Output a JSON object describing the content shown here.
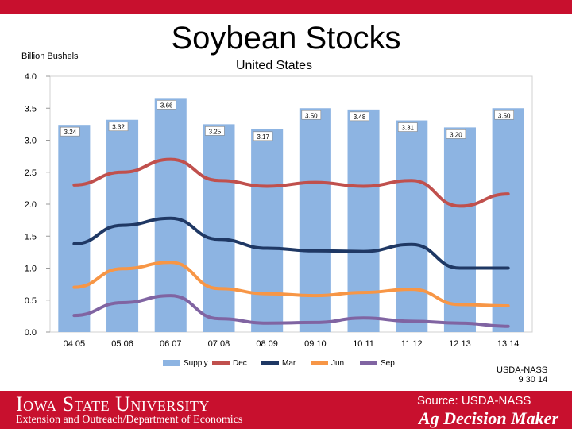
{
  "slide": {
    "title": "Soybean Stocks",
    "usda_note_line1": "USDA-NASS",
    "usda_note_line2": "9 30 14",
    "source": "Source: USDA-NASS",
    "university": "Iowa State University",
    "extension": "Extension and Outreach/Department of Economics",
    "brand": "Ag Decision Maker"
  },
  "colors": {
    "accent": "#c8102e",
    "supply": "#8db4e2",
    "dec": "#c0504d",
    "mar": "#1f3864",
    "jun": "#f79646",
    "sep": "#8064a2"
  },
  "chart_data": {
    "type": "bar",
    "title": "United States",
    "ylabel": "Billion Bushels",
    "xlabel": "",
    "ylim": [
      0,
      4.0
    ],
    "yticks": [
      "0.0",
      "0.5",
      "1.0",
      "1.5",
      "2.0",
      "2.5",
      "3.0",
      "3.5",
      "4.0"
    ],
    "categories": [
      "04 05",
      "05 06",
      "06 07",
      "07 08",
      "08 09",
      "09 10",
      "10 11",
      "11 12",
      "12 13",
      "13 14"
    ],
    "bar_series": {
      "name": "Supply",
      "values": [
        3.24,
        3.32,
        3.66,
        3.25,
        3.17,
        3.5,
        3.48,
        3.31,
        3.2,
        3.5
      ],
      "labels": [
        "3.24",
        "3.32",
        "3.66",
        "3.25",
        "3.17",
        "3.50",
        "3.48",
        "3.31",
        "3.20",
        "3.50"
      ]
    },
    "line_series": [
      {
        "name": "Dec",
        "values": [
          2.3,
          2.5,
          2.7,
          2.37,
          2.28,
          2.34,
          2.28,
          2.37,
          1.97,
          2.16
        ]
      },
      {
        "name": "Mar",
        "values": [
          1.38,
          1.67,
          1.78,
          1.45,
          1.31,
          1.27,
          1.26,
          1.37,
          1.0,
          1.0
        ]
      },
      {
        "name": "Jun",
        "values": [
          0.7,
          0.99,
          1.09,
          0.68,
          0.6,
          0.57,
          0.62,
          0.67,
          0.43,
          0.41
        ]
      },
      {
        "name": "Sep",
        "values": [
          0.26,
          0.46,
          0.57,
          0.21,
          0.14,
          0.15,
          0.22,
          0.17,
          0.14,
          0.09
        ]
      }
    ],
    "legend": [
      "Supply",
      "Dec",
      "Mar",
      "Jun",
      "Sep"
    ],
    "legend_position": "bottom",
    "grid": false
  }
}
